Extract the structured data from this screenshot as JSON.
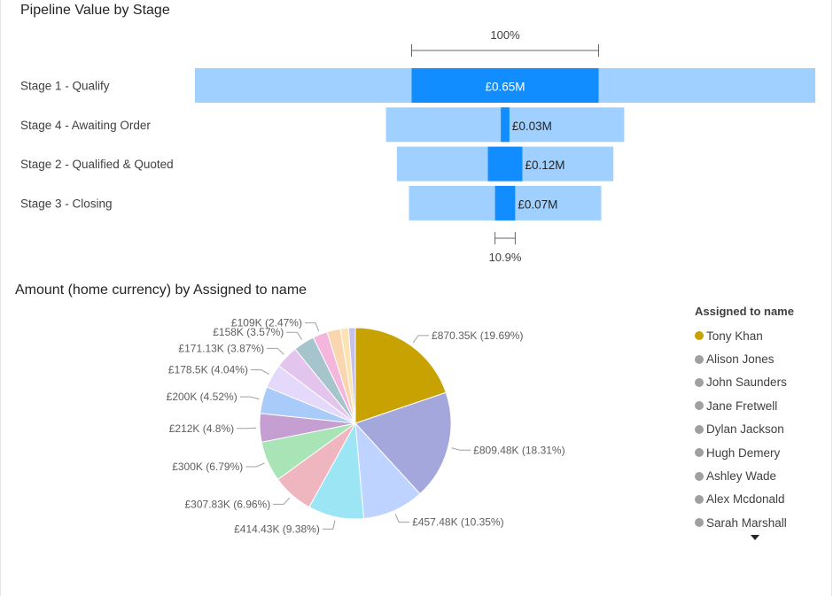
{
  "colors": {
    "funnel_outer": "#a0d0ff",
    "funnel_inner": "#118dff",
    "inner_label_light": "#ffffff",
    "inner_label_dark": "#252423",
    "pie_slices": [
      "#c8a200",
      "#a3a7dc",
      "#bed3ff",
      "#9ce5f5",
      "#f0b6c0",
      "#a8e4b5",
      "#c59ed2",
      "#a8cbf9",
      "#e4d9fb",
      "#e3c4ec",
      "#a6c4cc",
      "#f4b6dc",
      "#fad6b0",
      "#fbe3b4",
      "#c7c0ec"
    ],
    "legend_active": "#c8a200",
    "legend_inactive": "#a0a0a0"
  },
  "chart_data": [
    {
      "type": "funnel",
      "title": "Pipeline Value by Stage",
      "categories": [
        "Stage 1 - Qualify",
        "Stage 4 - Awaiting Order",
        "Stage 2 - Qualified & Quoted",
        "Stage 3 - Closing"
      ],
      "outer_values": [
        1.0,
        0.384,
        0.349,
        0.31
      ],
      "inner_values": [
        0.65,
        0.03,
        0.12,
        0.07
      ],
      "inner_labels": [
        "£0.65M",
        "£0.03M",
        "£0.12M",
        "£0.07M"
      ],
      "top_percent_label": "100%",
      "bottom_percent_label": "10.9%"
    },
    {
      "type": "pie",
      "title": "Amount (home currency) by Assigned to name",
      "values": [
        870.35,
        809.48,
        457.48,
        414.43,
        307.83,
        300,
        212,
        200,
        178.5,
        171.13,
        158,
        109,
        100,
        60,
        50
      ],
      "labels": [
        "£870.35K (19.69%)",
        "£809.48K (18.31%)",
        "£457.48K (10.35%)",
        "£414.43K (9.38%)",
        "£307.83K (6.96%)",
        "£300K (6.79%)",
        "£212K (4.8%)",
        "£200K (4.52%)",
        "£178.5K (4.04%)",
        "£171.13K (3.87%)",
        "£158K (3.57%)",
        "£109K (2.47%)",
        "",
        "",
        ""
      ],
      "legend_title": "Assigned to name",
      "legend": [
        "Tony Khan",
        "Alison Jones",
        "John Saunders",
        "Jane Fretwell",
        "Dylan Jackson",
        "Hugh Demery",
        "Ashley Wade",
        "Alex Mcdonald",
        "Sarah Marshall"
      ],
      "legend_active_index": 0,
      "legend_position": "right"
    }
  ]
}
